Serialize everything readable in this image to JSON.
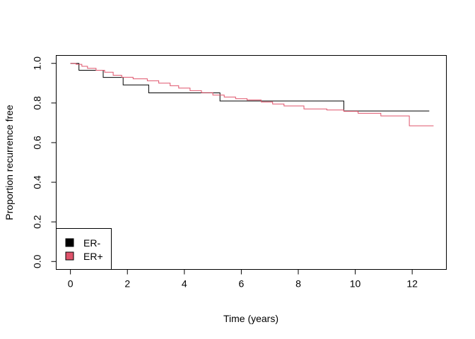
{
  "chart_data": {
    "type": "line",
    "step": true,
    "xlabel": "Time (years)",
    "ylabel": "Proportion recurrence free",
    "xlim": [
      -0.5,
      13.2
    ],
    "ylim": [
      -0.04,
      1.04
    ],
    "xticks": [
      0,
      2,
      4,
      6,
      8,
      10,
      12
    ],
    "yticks": [
      0.0,
      0.2,
      0.4,
      0.6,
      0.8,
      1.0
    ],
    "ytick_labels": [
      "0.0",
      "0.2",
      "0.4",
      "0.6",
      "0.8",
      "1.0"
    ],
    "grid": false,
    "legend_position": "bottom-left",
    "series": [
      {
        "name": "ER-",
        "color": "#000000",
        "x": [
          0,
          0.3,
          1.15,
          1.85,
          2.75,
          5.25,
          9.6,
          12.6
        ],
        "y": [
          1.0,
          0.965,
          0.929,
          0.891,
          0.851,
          0.81,
          0.76,
          0.76
        ]
      },
      {
        "name": "ER+",
        "color": "#DF536B",
        "x": [
          0,
          0.2,
          0.4,
          0.6,
          0.9,
          1.2,
          1.5,
          1.8,
          2.2,
          2.7,
          3.1,
          3.5,
          3.8,
          4.2,
          4.6,
          5.0,
          5.4,
          5.8,
          6.2,
          6.7,
          7.1,
          7.5,
          8.2,
          9.0,
          9.6,
          10.1,
          10.9,
          11.9,
          12.75
        ],
        "y": [
          1.0,
          0.995,
          0.985,
          0.975,
          0.965,
          0.955,
          0.94,
          0.93,
          0.922,
          0.912,
          0.9,
          0.887,
          0.875,
          0.862,
          0.852,
          0.84,
          0.83,
          0.822,
          0.815,
          0.805,
          0.795,
          0.785,
          0.77,
          0.765,
          0.758,
          0.748,
          0.735,
          0.685,
          0.685
        ]
      }
    ]
  }
}
